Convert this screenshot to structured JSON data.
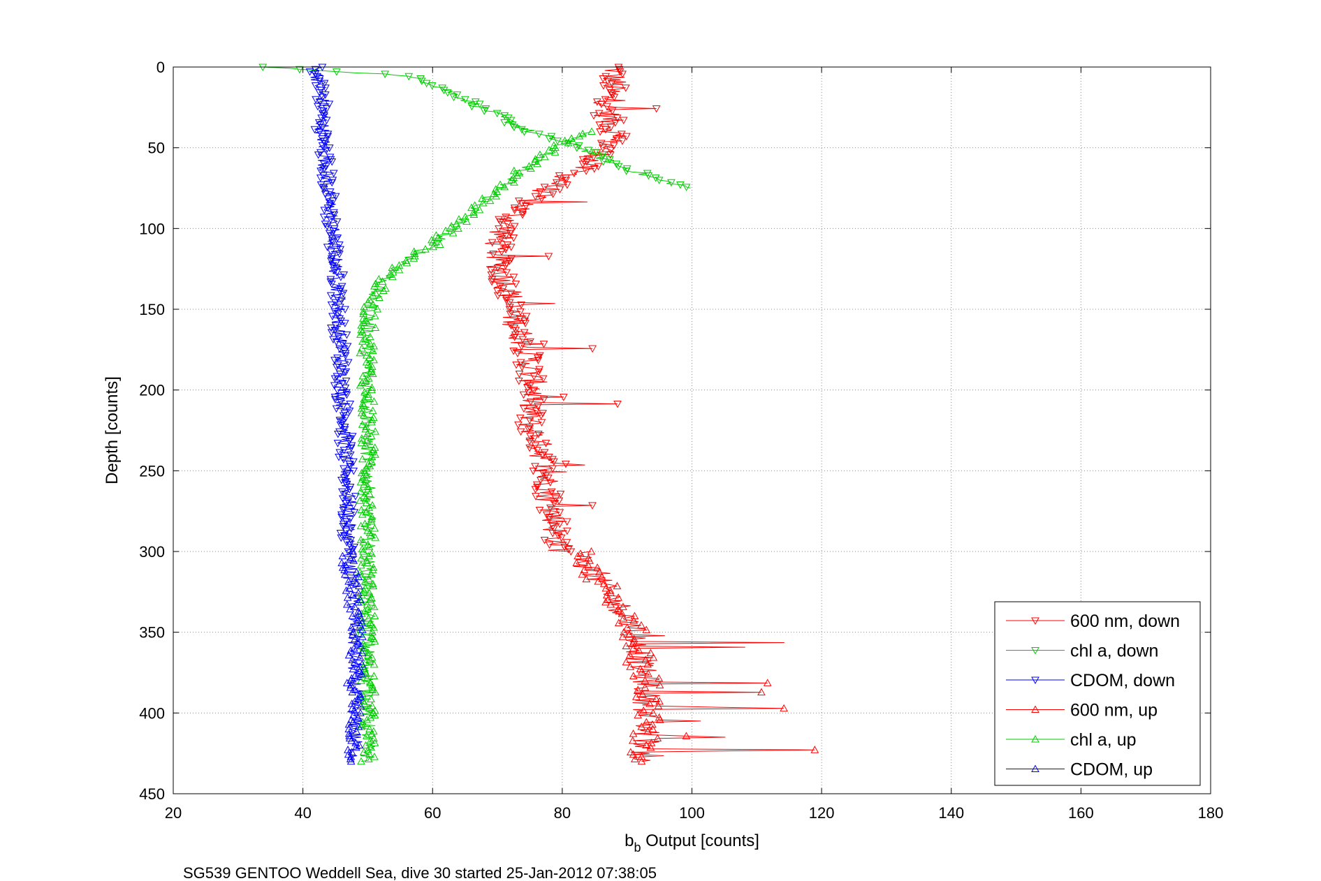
{
  "chart_data": {
    "type": "line",
    "xlabel_main": "b",
    "xlabel_sub": "b",
    "xlabel_rest": " Output [counts]",
    "ylabel": "Depth [counts]",
    "caption": "SG539 GENTOO Weddell Sea, dive 30 started 25-Jan-2012 07:38:05",
    "xlim": [
      20,
      180
    ],
    "ylim": [
      0,
      450
    ],
    "y_reversed": true,
    "xticks": [
      "20",
      "40",
      "60",
      "80",
      "100",
      "120",
      "140",
      "160",
      "180"
    ],
    "yticks": [
      "0",
      "50",
      "100",
      "150",
      "200",
      "250",
      "300",
      "350",
      "400",
      "450"
    ],
    "grid": true,
    "legend_position": "bottom-right",
    "series": [
      {
        "name": "600 nm, down",
        "color": "#ff0000",
        "marker": "triangle-down",
        "depth": [
          0,
          10,
          20,
          30,
          40,
          50,
          60,
          70,
          80,
          90,
          100,
          110,
          120,
          130,
          140,
          150,
          160,
          170,
          180,
          190,
          200,
          210,
          220,
          230,
          240,
          250,
          260,
          270,
          280,
          290,
          300
        ],
        "value": [
          88,
          88,
          87,
          87,
          88,
          87,
          84,
          80,
          76,
          73,
          71,
          70,
          70,
          71,
          72,
          72,
          73,
          74,
          75,
          75,
          76,
          75,
          75,
          76,
          77,
          77,
          78,
          78,
          79,
          79,
          80
        ]
      },
      {
        "name": "chl a, down",
        "color": "#00cc00",
        "marker": "triangle-down",
        "depth": [
          0,
          5,
          10,
          20,
          30,
          40,
          50,
          60,
          70,
          75
        ],
        "value": [
          34,
          55,
          60,
          65,
          70,
          75,
          83,
          88,
          95,
          100
        ]
      },
      {
        "name": "CDOM, down",
        "color": "#0000ff",
        "marker": "triangle-down",
        "depth": [
          0,
          20,
          40,
          60,
          80,
          100,
          120,
          140,
          160,
          180,
          200,
          220,
          240,
          260,
          280,
          300
        ],
        "value": [
          42,
          43,
          43,
          43.5,
          44,
          44.5,
          45,
          45.5,
          45.5,
          46,
          46,
          46.5,
          46.5,
          47,
          47,
          47
        ]
      },
      {
        "name": "600 nm, up",
        "color": "#ff0000",
        "marker": "triangle-up",
        "depth": [
          300,
          310,
          320,
          330,
          340,
          350,
          360,
          370,
          380,
          390,
          400,
          410,
          420,
          430
        ],
        "value": [
          82,
          84,
          86,
          88,
          90,
          91,
          92,
          92,
          93,
          93,
          93,
          93,
          93,
          92
        ]
      },
      {
        "name": "chl a, up",
        "color": "#00cc00",
        "marker": "triangle-up",
        "depth": [
          430,
          400,
          350,
          300,
          250,
          200,
          160,
          140,
          130,
          120,
          110,
          100,
          90,
          80,
          70,
          60,
          50,
          45,
          40
        ],
        "value": [
          50,
          50,
          50,
          50,
          50,
          50,
          50,
          51,
          53,
          56,
          60,
          63,
          66,
          69,
          72,
          75,
          79,
          82,
          85
        ]
      },
      {
        "name": "CDOM, up",
        "color": "#0000ff",
        "marker": "triangle-up",
        "depth": [
          300,
          320,
          340,
          360,
          380,
          400,
          430
        ],
        "value": [
          47,
          47.5,
          48,
          48,
          48,
          48,
          48
        ]
      }
    ]
  }
}
